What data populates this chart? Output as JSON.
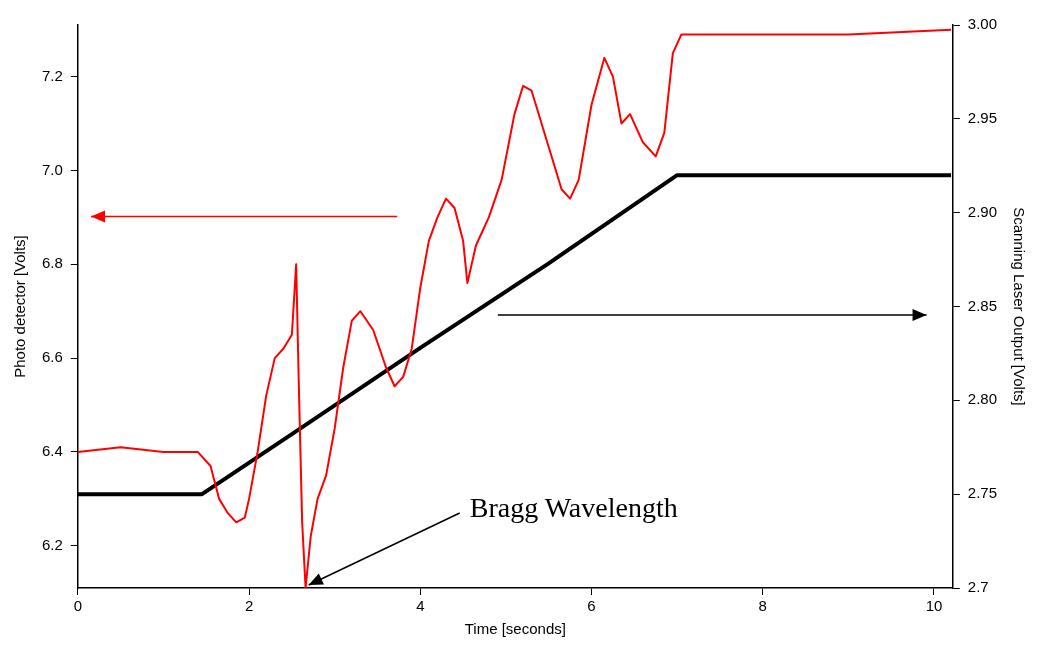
{
  "chart_data": {
    "type": "line",
    "xlabel": "Time [seconds]",
    "ylabel": "Photo detector [Volts]",
    "y2label": "Scanning Laser Output [Volts]",
    "xlim": [
      0,
      10.22
    ],
    "xticks": [
      0,
      2,
      4,
      6,
      8,
      10
    ],
    "ylim": [
      6.11,
      7.31
    ],
    "yticks": [
      6.2,
      6.4,
      6.6,
      6.8,
      {
        "value": 7,
        "label": "7.0"
      },
      7.2
    ],
    "y2lim": [
      2.7,
      3.0
    ],
    "y2ticks": [
      2.7,
      {
        "value": 2.75,
        "label": "2.75"
      },
      {
        "value": 2.8,
        "label": "2.80"
      },
      2.85,
      {
        "value": 2.9,
        "label": "2.90"
      },
      2.95,
      {
        "value": 3.0,
        "label": "3.00"
      }
    ],
    "grid": false,
    "legend": false,
    "marker": "none",
    "line_style": "solid",
    "annotations": [
      {
        "text": "Bragg Wavelength",
        "x": 2.65,
        "y": 6.11
      }
    ],
    "series": [
      {
        "color": "#ff0000",
        "x": [
          0,
          0.5,
          1,
          1.4,
          1.55,
          1.65,
          1.75,
          1.85,
          1.95,
          2.0,
          2.1,
          2.2,
          2.3,
          2.4,
          2.5,
          2.55,
          2.58,
          2.62,
          2.66,
          2.72,
          2.8,
          2.9,
          3.0,
          3.1,
          3.2,
          3.3,
          3.45,
          3.6,
          3.7,
          3.8,
          3.9,
          4.0,
          4.1,
          4.2,
          4.3,
          4.4,
          4.5,
          4.55,
          4.65,
          4.8,
          4.95,
          5.1,
          5.2,
          5.3,
          5.5,
          5.65,
          5.75,
          5.85,
          6.0,
          6.15,
          6.25,
          6.35,
          6.45,
          6.6,
          6.75,
          6.85,
          6.95,
          7.05,
          8,
          9,
          10.2
        ],
        "values": [
          6.4,
          6.41,
          6.4,
          6.4,
          6.37,
          6.3,
          6.27,
          6.25,
          6.26,
          6.3,
          6.4,
          6.52,
          6.6,
          6.62,
          6.65,
          6.8,
          6.55,
          6.25,
          6.11,
          6.22,
          6.3,
          6.35,
          6.45,
          6.58,
          6.68,
          6.7,
          6.66,
          6.58,
          6.54,
          6.56,
          6.62,
          6.75,
          6.85,
          6.9,
          6.94,
          6.92,
          6.85,
          6.76,
          6.84,
          6.9,
          6.98,
          7.12,
          7.18,
          7.17,
          7.05,
          6.96,
          6.94,
          6.98,
          7.14,
          7.24,
          7.2,
          7.1,
          7.12,
          7.06,
          7.03,
          7.08,
          7.25,
          7.29,
          7.29,
          7.29,
          7.3
        ]
      },
      {
        "color": "#000000",
        "axis": "y2",
        "x": [
          0,
          1.45,
          2.5,
          4,
          5.5,
          7.0,
          8.5,
          10.2
        ],
        "values": [
          2.75,
          2.75,
          2.782,
          2.828,
          2.873,
          2.92,
          2.92,
          2.92
        ]
      }
    ]
  }
}
